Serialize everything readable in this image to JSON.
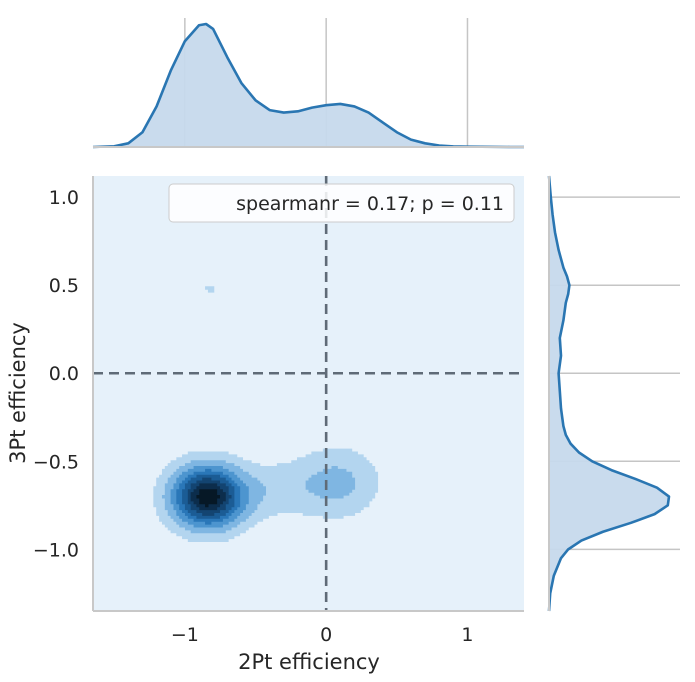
{
  "chart_data": {
    "type": "kde-jointplot",
    "xlabel": "2Pt efficiency",
    "ylabel": "3Pt efficiency",
    "xlim": [
      -1.65,
      1.4
    ],
    "ylim": [
      -1.35,
      1.12
    ],
    "xticks": [
      -1,
      0,
      1
    ],
    "xtick_labels": [
      "−1",
      "0",
      "1"
    ],
    "yticks": [
      1.0,
      0.5,
      0.0,
      -0.5,
      -1.0
    ],
    "ytick_labels": [
      "1.0",
      "0.5",
      "0.0",
      "−0.5",
      "−1.0"
    ],
    "annotation": "spearmanr = 0.17; p = 0.11",
    "reference_lines": {
      "x": 0,
      "y": 0,
      "style": "dashed"
    },
    "grid": true,
    "legend_placement": "top-right",
    "colors": {
      "line": "#2a76b2",
      "fill": "#c6d9ec",
      "background": "#e6f1fa",
      "refline": "#5f6b77",
      "grid": "#c5c5c5",
      "spine": "#c8c8c8"
    },
    "contour_colors": [
      "#b3d5ef",
      "#7fb6e2",
      "#4d95cf",
      "#2a77b8",
      "#1b5c95",
      "#134471",
      "#0c2d4c",
      "#061826"
    ],
    "marginal_x": {
      "x": [
        -1.65,
        -1.5,
        -1.4,
        -1.3,
        -1.2,
        -1.1,
        -1.0,
        -0.9,
        -0.85,
        -0.8,
        -0.7,
        -0.6,
        -0.5,
        -0.4,
        -0.3,
        -0.2,
        -0.1,
        0.0,
        0.1,
        0.2,
        0.3,
        0.4,
        0.5,
        0.6,
        0.7,
        0.8,
        0.9,
        1.0,
        1.1,
        1.2,
        1.3,
        1.4
      ],
      "density": [
        0.0,
        0.006,
        0.03,
        0.12,
        0.33,
        0.62,
        0.86,
        0.99,
        1.0,
        0.96,
        0.73,
        0.52,
        0.38,
        0.3,
        0.28,
        0.29,
        0.32,
        0.34,
        0.35,
        0.33,
        0.28,
        0.2,
        0.12,
        0.06,
        0.03,
        0.012,
        0.005,
        0.003,
        0.002,
        0.001,
        0.0,
        0.0
      ]
    },
    "marginal_y": {
      "y": [
        -1.35,
        -1.25,
        -1.15,
        -1.05,
        -1.0,
        -0.95,
        -0.9,
        -0.85,
        -0.8,
        -0.75,
        -0.7,
        -0.65,
        -0.6,
        -0.55,
        -0.5,
        -0.45,
        -0.4,
        -0.35,
        -0.3,
        -0.25,
        -0.2,
        -0.1,
        0.0,
        0.1,
        0.2,
        0.3,
        0.4,
        0.45,
        0.5,
        0.55,
        0.6,
        0.7,
        0.8,
        0.9,
        1.0,
        1.12
      ],
      "density": [
        0.0,
        0.01,
        0.04,
        0.1,
        0.16,
        0.27,
        0.45,
        0.68,
        0.88,
        0.99,
        1.0,
        0.9,
        0.72,
        0.52,
        0.36,
        0.25,
        0.18,
        0.14,
        0.12,
        0.11,
        0.1,
        0.09,
        0.08,
        0.1,
        0.09,
        0.12,
        0.14,
        0.16,
        0.17,
        0.15,
        0.12,
        0.08,
        0.05,
        0.03,
        0.015,
        0.0
      ]
    },
    "density_components": [
      {
        "x": -0.84,
        "y": -0.7,
        "sx": 0.19,
        "sy": 0.13,
        "w": 1.0
      },
      {
        "x": 0.08,
        "y": -0.62,
        "sx": 0.22,
        "sy": 0.15,
        "w": 0.3
      },
      {
        "x": -0.82,
        "y": 0.48,
        "sx": 0.1,
        "sy": 0.045,
        "w": 0.14
      },
      {
        "x": -0.35,
        "y": -0.66,
        "sx": 0.18,
        "sy": 0.12,
        "w": 0.16
      }
    ],
    "contour_levels": [
      0.13,
      0.26,
      0.4,
      0.52,
      0.63,
      0.74,
      0.84,
      0.93
    ]
  }
}
